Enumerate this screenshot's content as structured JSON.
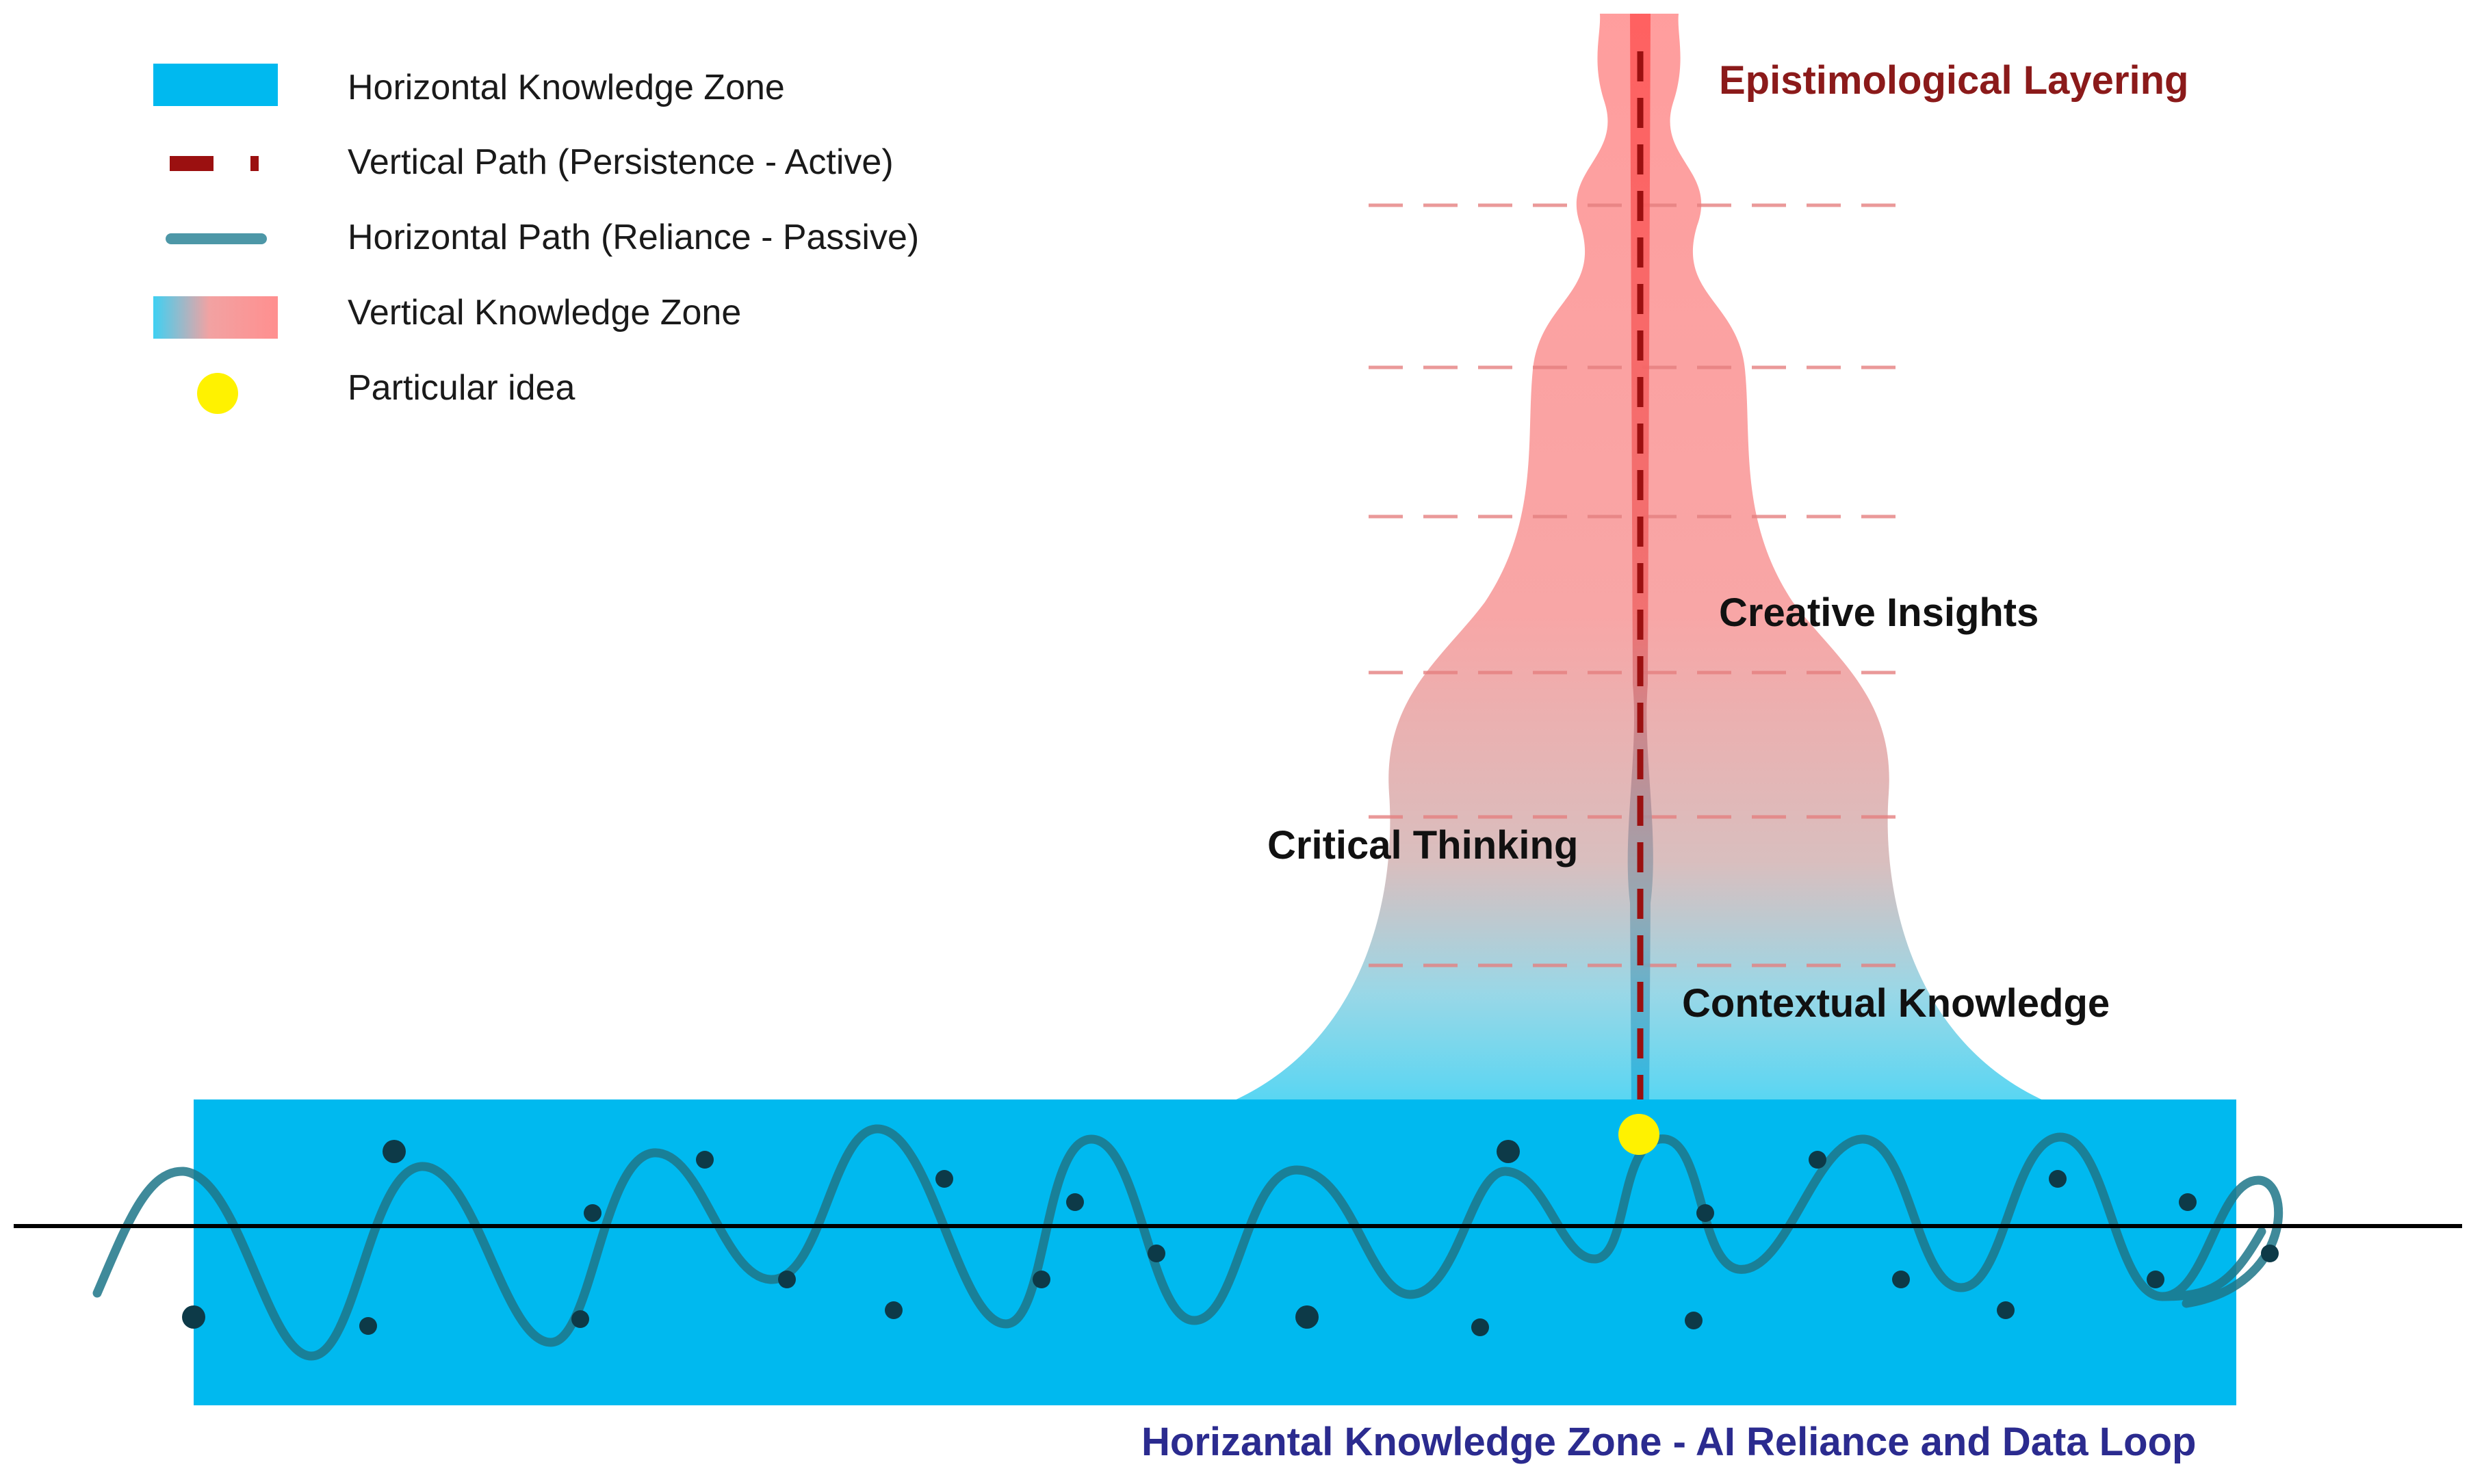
{
  "legend": {
    "items": [
      {
        "key": "horizontal-zone",
        "label": "Horizontal Knowledge Zone"
      },
      {
        "key": "vertical-path",
        "label": "Vertical Path (Persistence - Active)"
      },
      {
        "key": "horizontal-path",
        "label": "Horizontal Path (Reliance - Passive)"
      },
      {
        "key": "vertical-zone",
        "label": "Vertical Knowledge Zone"
      },
      {
        "key": "particular-idea",
        "label": "Particular idea"
      }
    ]
  },
  "vertical_zone": {
    "title": "Epistimological Layering",
    "layers": {
      "creative_insights": "Creative Insights",
      "critical_thinking": "Critical Thinking",
      "contextual_knowledge": "Contextual Knowledge"
    }
  },
  "horizontal_zone": {
    "caption": "Horizantal Knowledge Zone - AI Reliance and Data Loop"
  },
  "colors": {
    "horizontal_zone": "#00b9ef",
    "vertical_zone_top": "#ff8c8c",
    "vertical_zone_bottom": "#5ad8f4",
    "vertical_path": "#9b1010",
    "horizontal_path": "#1d7588",
    "particular_idea": "#fff200",
    "data_points": "#0d3a48",
    "epistemology_title": "#8b1a1a",
    "zone_caption": "#2b2b8f",
    "baseline": "#000000"
  }
}
